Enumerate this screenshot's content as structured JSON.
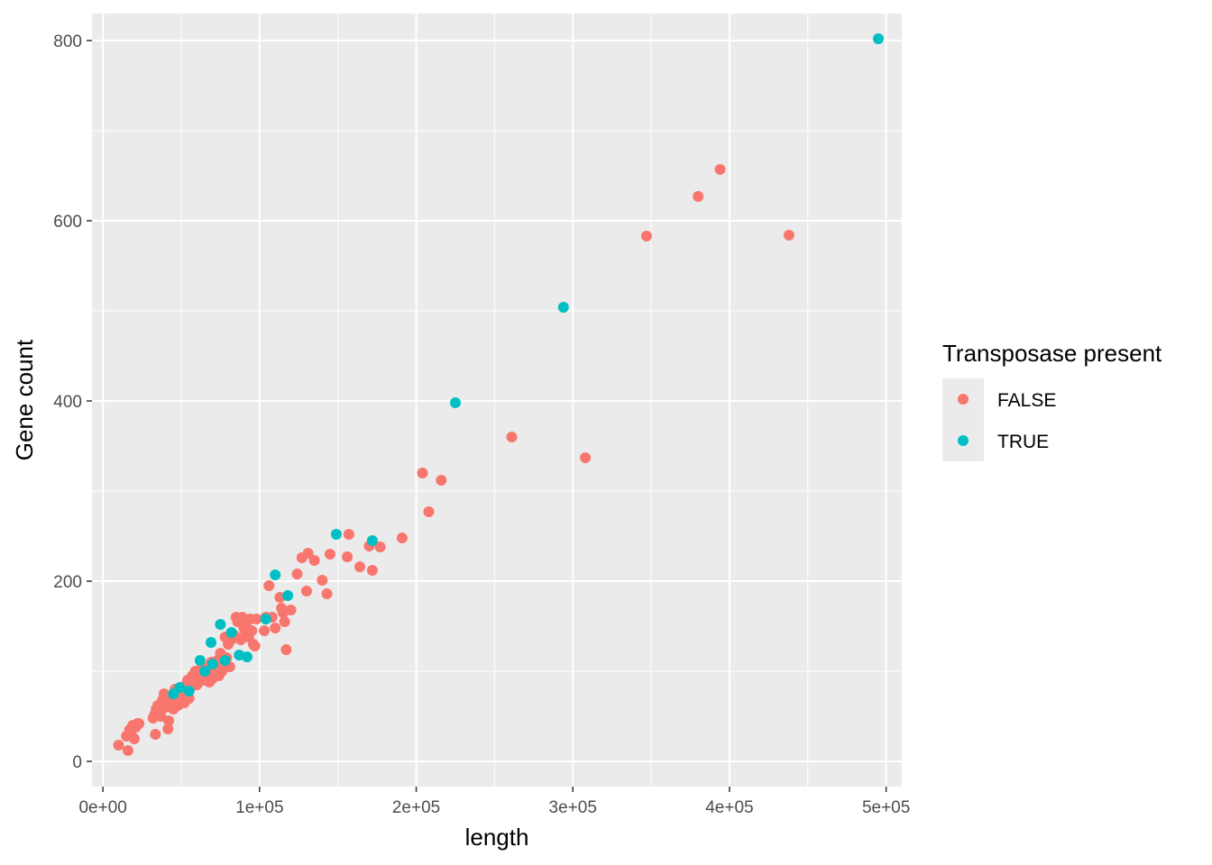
{
  "chart_data": {
    "type": "scatter",
    "xlabel": "length",
    "ylabel": "Gene count",
    "xlim": [
      -7000,
      510000
    ],
    "ylim": [
      -28,
      830
    ],
    "x_ticks": [
      0,
      100000,
      200000,
      300000,
      400000,
      500000
    ],
    "x_tick_labels": [
      "0e+00",
      "1e+05",
      "2e+05",
      "3e+05",
      "4e+05",
      "5e+05"
    ],
    "y_ticks": [
      0,
      200,
      400,
      600,
      800
    ],
    "y_tick_labels": [
      "0",
      "200",
      "400",
      "600",
      "800"
    ],
    "grid": true,
    "legend": {
      "title": "Transposase present",
      "placement": "right",
      "entries": [
        {
          "label": "FALSE",
          "color": "#F8766D"
        },
        {
          "label": "TRUE",
          "color": "#00BFC4"
        }
      ]
    },
    "series": [
      {
        "name": "FALSE",
        "color": "#F8766D",
        "points": [
          [
            10000,
            18
          ],
          [
            15000,
            28
          ],
          [
            16000,
            12
          ],
          [
            17000,
            35
          ],
          [
            18000,
            30
          ],
          [
            19000,
            40
          ],
          [
            20000,
            25
          ],
          [
            21000,
            38
          ],
          [
            22000,
            42
          ],
          [
            23000,
            42
          ],
          [
            32000,
            48
          ],
          [
            33000,
            52
          ],
          [
            33500,
            30
          ],
          [
            34000,
            58
          ],
          [
            35000,
            62
          ],
          [
            36000,
            55
          ],
          [
            37000,
            50
          ],
          [
            38000,
            68
          ],
          [
            39000,
            75
          ],
          [
            40000,
            60
          ],
          [
            41000,
            70
          ],
          [
            41500,
            36
          ],
          [
            42000,
            45
          ],
          [
            43000,
            65
          ],
          [
            44000,
            72
          ],
          [
            45000,
            58
          ],
          [
            46000,
            80
          ],
          [
            47000,
            68
          ],
          [
            48000,
            62
          ],
          [
            49000,
            75
          ],
          [
            50000,
            72
          ],
          [
            51000,
            78
          ],
          [
            52000,
            65
          ],
          [
            53000,
            85
          ],
          [
            54000,
            90
          ],
          [
            55000,
            70
          ],
          [
            56000,
            82
          ],
          [
            57000,
            95
          ],
          [
            58000,
            88
          ],
          [
            59000,
            100
          ],
          [
            60000,
            85
          ],
          [
            61000,
            92
          ],
          [
            62000,
            98
          ],
          [
            63000,
            105
          ],
          [
            64000,
            90
          ],
          [
            65000,
            95
          ],
          [
            66000,
            100
          ],
          [
            67000,
            102
          ],
          [
            68000,
            88
          ],
          [
            69000,
            110
          ],
          [
            70000,
            92
          ],
          [
            71000,
            98
          ],
          [
            72000,
            105
          ],
          [
            73000,
            112
          ],
          [
            74000,
            95
          ],
          [
            75000,
            120
          ],
          [
            76000,
            100
          ],
          [
            77000,
            108
          ],
          [
            78000,
            138
          ],
          [
            79000,
            115
          ],
          [
            80000,
            130
          ],
          [
            81000,
            105
          ],
          [
            82000,
            135
          ],
          [
            84000,
            140
          ],
          [
            85000,
            160
          ],
          [
            86000,
            155
          ],
          [
            88000,
            135
          ],
          [
            89000,
            160
          ],
          [
            90000,
            148
          ],
          [
            91000,
            142
          ],
          [
            92000,
            155
          ],
          [
            93000,
            138
          ],
          [
            94000,
            158
          ],
          [
            95000,
            145
          ],
          [
            96000,
            130
          ],
          [
            97000,
            128
          ],
          [
            98000,
            158
          ],
          [
            103000,
            145
          ],
          [
            104000,
            160
          ],
          [
            106000,
            195
          ],
          [
            108000,
            160
          ],
          [
            110000,
            148
          ],
          [
            113000,
            182
          ],
          [
            114000,
            170
          ],
          [
            115000,
            165
          ],
          [
            116000,
            155
          ],
          [
            117000,
            124
          ],
          [
            120000,
            168
          ],
          [
            124000,
            208
          ],
          [
            127000,
            226
          ],
          [
            130000,
            189
          ],
          [
            131000,
            231
          ],
          [
            135000,
            223
          ],
          [
            140000,
            201
          ],
          [
            143000,
            186
          ],
          [
            145000,
            230
          ],
          [
            156000,
            227
          ],
          [
            157000,
            252
          ],
          [
            164000,
            216
          ],
          [
            170000,
            239
          ],
          [
            172000,
            212
          ],
          [
            177000,
            238
          ],
          [
            191000,
            248
          ],
          [
            204000,
            320
          ],
          [
            208000,
            277
          ],
          [
            216000,
            312
          ],
          [
            261000,
            360
          ],
          [
            308000,
            337
          ],
          [
            347000,
            583
          ],
          [
            380000,
            627
          ],
          [
            394000,
            657
          ],
          [
            438000,
            584
          ]
        ]
      },
      {
        "name": "TRUE",
        "color": "#00BFC4",
        "points": [
          [
            45000,
            75
          ],
          [
            49000,
            82
          ],
          [
            55000,
            78
          ],
          [
            62000,
            112
          ],
          [
            65000,
            100
          ],
          [
            69000,
            132
          ],
          [
            70000,
            108
          ],
          [
            75000,
            152
          ],
          [
            78000,
            112
          ],
          [
            82000,
            143
          ],
          [
            87000,
            118
          ],
          [
            92000,
            116
          ],
          [
            104000,
            158
          ],
          [
            110000,
            207
          ],
          [
            118000,
            184
          ],
          [
            149000,
            252
          ],
          [
            172000,
            245
          ],
          [
            225000,
            398
          ],
          [
            294000,
            504
          ],
          [
            495000,
            802
          ]
        ]
      }
    ]
  }
}
